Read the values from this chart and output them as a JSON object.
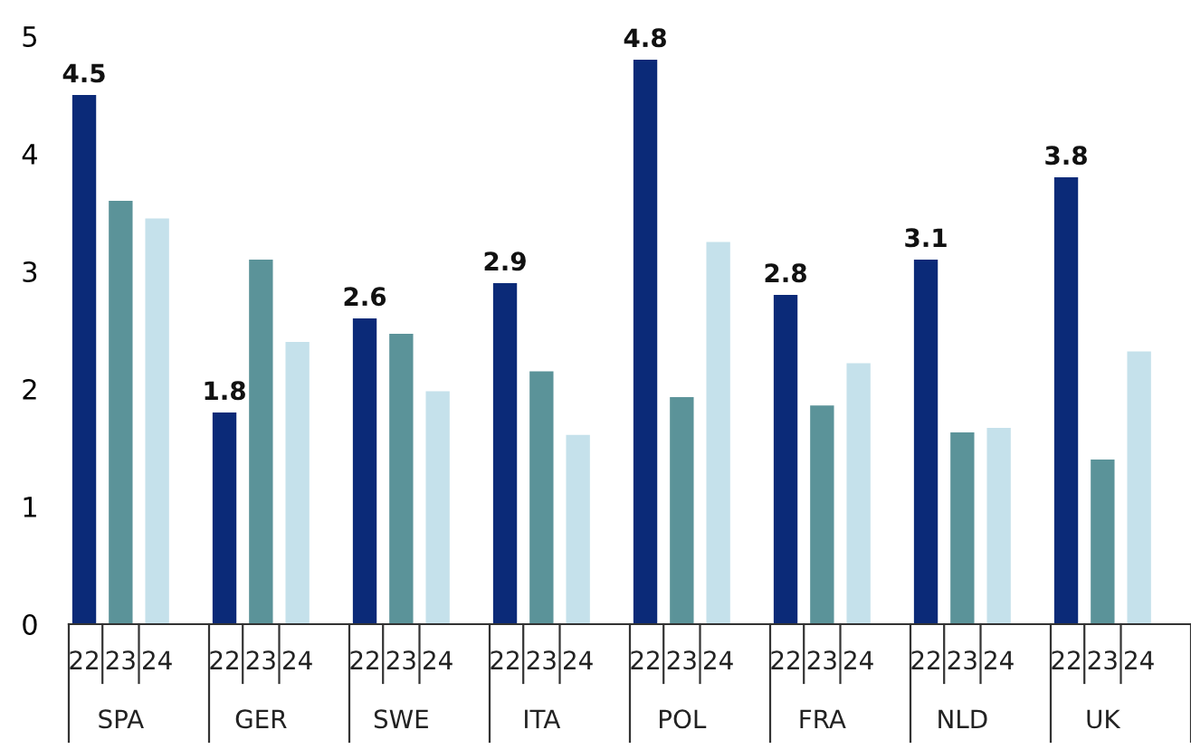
{
  "chart_data": {
    "type": "bar",
    "categories": [
      "SPA",
      "GER",
      "SWE",
      "ITA",
      "POL",
      "FRA",
      "NLD",
      "UK"
    ],
    "series": [
      {
        "name": "22",
        "color": "#0b2a78",
        "values": [
          4.5,
          1.8,
          2.6,
          2.9,
          4.8,
          2.8,
          3.1,
          3.8
        ],
        "value_labels": [
          "4.5",
          "1.8",
          "2.6",
          "2.9",
          "4.8",
          "2.8",
          "3.1",
          "3.8"
        ]
      },
      {
        "name": "23",
        "color": "#5b9399",
        "values": [
          3.6,
          3.1,
          2.47,
          2.15,
          1.93,
          1.86,
          1.63,
          1.4
        ]
      },
      {
        "name": "24",
        "color": "#c5e1eb",
        "values": [
          3.45,
          2.4,
          1.98,
          1.61,
          3.25,
          2.22,
          1.67,
          2.32
        ]
      }
    ],
    "ylim": [
      0,
      5
    ],
    "yticks": [
      0,
      1,
      2,
      3,
      4,
      5
    ],
    "grid": false,
    "legend": false
  }
}
